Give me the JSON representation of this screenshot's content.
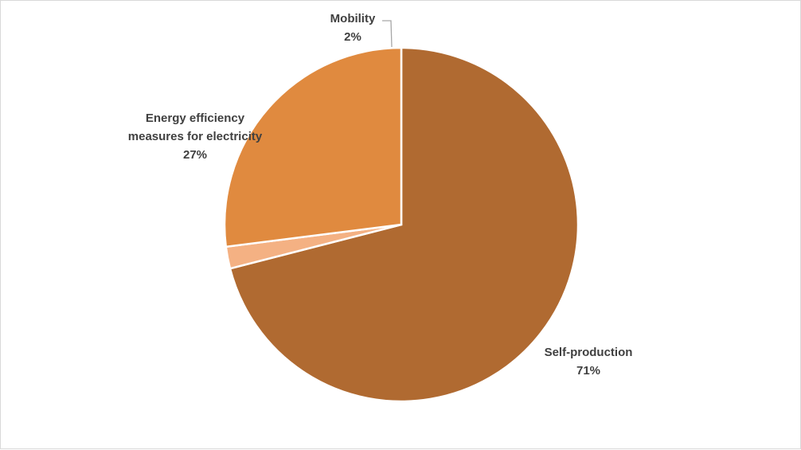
{
  "chart_data": {
    "type": "pie",
    "title": "",
    "legend": "none",
    "slices": [
      {
        "name": "Self-production",
        "value": 71,
        "label": "71%",
        "color": "#b06a31"
      },
      {
        "name": "Mobility",
        "value": 2,
        "label": "2%",
        "color": "#f4b183"
      },
      {
        "name": "Energy efficiency measures for electricity",
        "value": 27,
        "label": "27%",
        "color": "#e08a3f"
      }
    ]
  },
  "labels": {
    "self_production": {
      "line1": "Self-production",
      "line2": "71%"
    },
    "mobility": {
      "line1": "Mobility",
      "line2": "2%"
    },
    "energy_efficiency": {
      "line1": "Energy efficiency",
      "line2": "measures for electricity",
      "line3": "27%"
    }
  }
}
